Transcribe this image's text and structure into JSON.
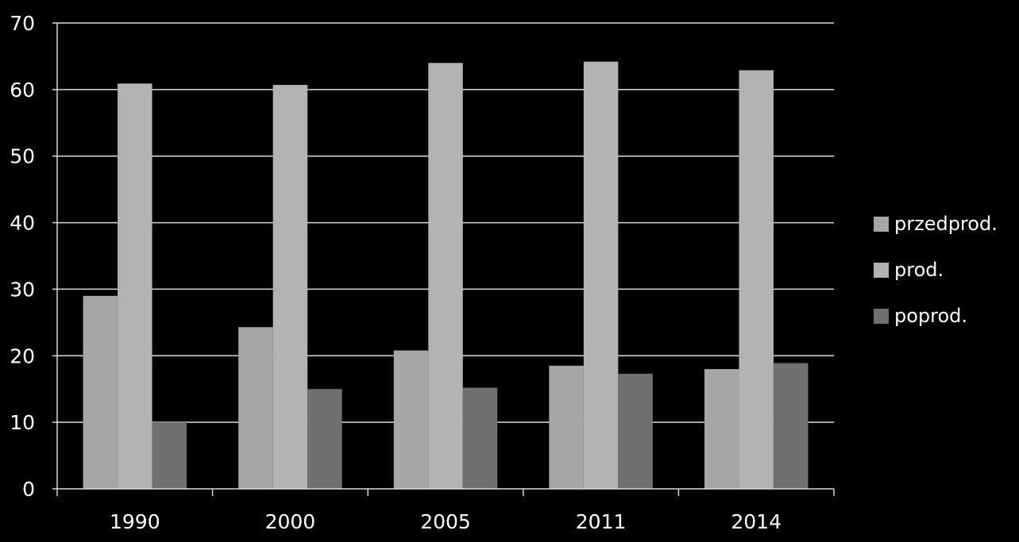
{
  "chart_data": {
    "type": "bar",
    "categories": [
      "1990",
      "2000",
      "2005",
      "2011",
      "2014"
    ],
    "series": [
      {
        "name": "przedprod.",
        "values": [
          29,
          24.3,
          20.8,
          18.5,
          18
        ],
        "color": "#a6a6a6"
      },
      {
        "name": "prod.",
        "values": [
          60.9,
          60.7,
          64,
          64.2,
          62.9
        ],
        "color": "#b3b3b3"
      },
      {
        "name": "poprod.",
        "values": [
          10,
          15,
          15.2,
          17.3,
          18.9
        ],
        "color": "#707070"
      }
    ],
    "ylim": [
      0,
      70
    ],
    "yticks": [
      "0",
      "10",
      "20",
      "30",
      "40",
      "50",
      "60",
      "70"
    ],
    "grid": true,
    "legend_position": "right"
  }
}
